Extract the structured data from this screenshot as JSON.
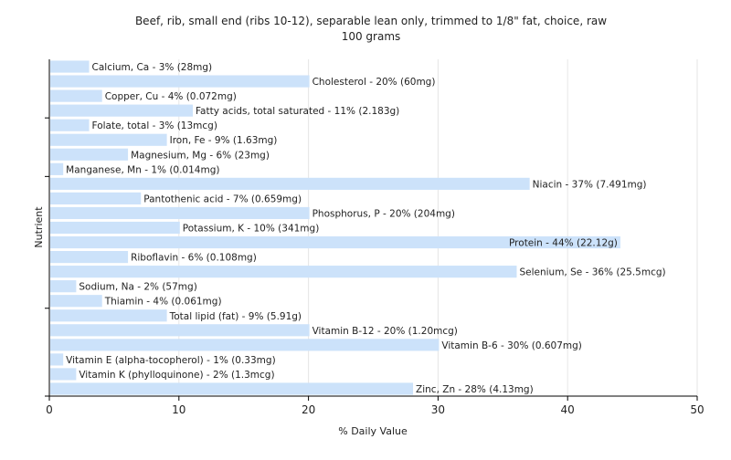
{
  "colors": {
    "bar": "#cce2fa",
    "grid": "#e6e6e6",
    "axis": "#000000",
    "text": "#222222"
  },
  "chart_data": {
    "type": "bar",
    "orientation": "horizontal",
    "title": "Beef, rib, small end (ribs 10-12), separable lean only, trimmed to 1/8\" fat, choice, raw",
    "subtitle": "100 grams",
    "xlabel": "% Daily Value",
    "ylabel": "Nutrient",
    "xlim": [
      0,
      50
    ],
    "xticks": [
      "0",
      "10",
      "20",
      "30",
      "40",
      "50"
    ],
    "grid": true,
    "categories": [
      "Calcium, Ca",
      "Cholesterol",
      "Copper, Cu",
      "Fatty acids, total saturated",
      "Folate, total",
      "Iron, Fe",
      "Magnesium, Mg",
      "Manganese, Mn",
      "Niacin",
      "Pantothenic acid",
      "Phosphorus, P",
      "Potassium, K",
      "Protein",
      "Riboflavin",
      "Selenium, Se",
      "Sodium, Na",
      "Thiamin",
      "Total lipid (fat)",
      "Vitamin B-12",
      "Vitamin B-6",
      "Vitamin E (alpha-tocopherol)",
      "Vitamin K (phylloquinone)",
      "Zinc, Zn"
    ],
    "values": [
      3,
      20,
      4,
      11,
      3,
      9,
      6,
      1,
      37,
      7,
      20,
      10,
      44,
      6,
      36,
      2,
      4,
      9,
      20,
      30,
      1,
      2,
      28
    ],
    "labels": [
      "Calcium, Ca - 3% (28mg)",
      "Cholesterol - 20% (60mg)",
      "Copper, Cu - 4% (0.072mg)",
      "Fatty acids, total saturated - 11% (2.183g)",
      "Folate, total - 3% (13mcg)",
      "Iron, Fe - 9% (1.63mg)",
      "Magnesium, Mg - 6% (23mg)",
      "Manganese, Mn - 1% (0.014mg)",
      "Niacin - 37% (7.491mg)",
      "Pantothenic acid - 7% (0.659mg)",
      "Phosphorus, P - 20% (204mg)",
      "Potassium, K - 10% (341mg)",
      "Protein - 44% (22.12g)",
      "Riboflavin - 6% (0.108mg)",
      "Selenium, Se - 36% (25.5mcg)",
      "Sodium, Na - 2% (57mg)",
      "Thiamin - 4% (0.061mg)",
      "Total lipid (fat) - 9% (5.91g)",
      "Vitamin B-12 - 20% (1.20mcg)",
      "Vitamin B-6 - 30% (0.607mg)",
      "Vitamin E (alpha-tocopherol) - 1% (0.33mg)",
      "Vitamin K (phylloquinone) - 2% (1.3mcg)",
      "Zinc, Zn - 28% (4.13mg)"
    ]
  }
}
